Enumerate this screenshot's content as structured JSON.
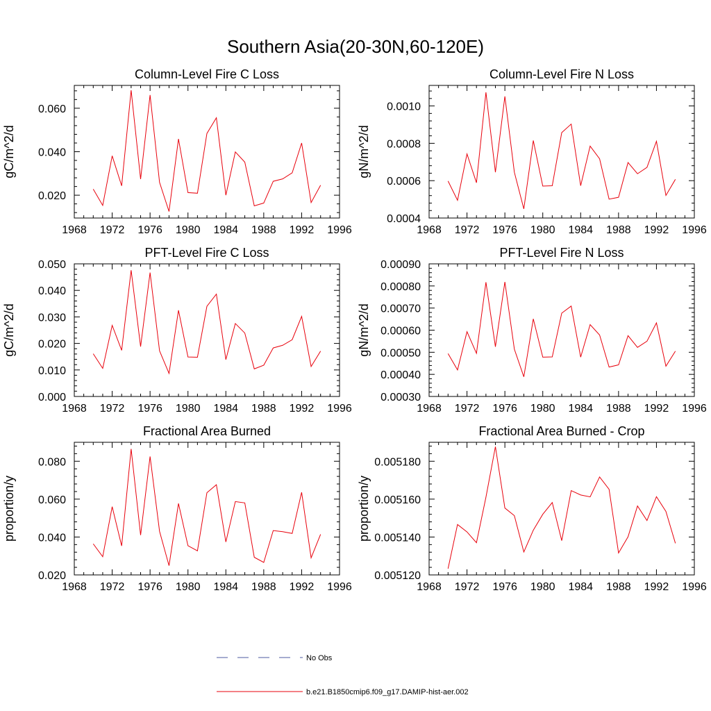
{
  "figure": {
    "title": "Southern Asia(20-30N,60-120E)",
    "legend": [
      {
        "label": "No Obs",
        "color": "#4b5aa0",
        "dash": "dashed"
      },
      {
        "label": "b.e21.B1850cmip6.f09_g17.DAMIP-hist-aer.002",
        "color": "#e8000b",
        "dash": "solid"
      }
    ]
  },
  "chart_data": [
    {
      "type": "line",
      "title": "Column-Level Fire C Loss",
      "xlabel": "",
      "ylabel": "gC/m^2/d",
      "xlim": [
        1968,
        1996
      ],
      "ylim": [
        0.0095,
        0.0705
      ],
      "xticks": [
        1968,
        1972,
        1976,
        1980,
        1984,
        1988,
        1992,
        1996
      ],
      "yticks": [
        0.02,
        0.04,
        0.06
      ],
      "ytick_labels": [
        "0.020",
        "0.040",
        "0.060"
      ],
      "x": [
        1970,
        1971,
        1972,
        1973,
        1974,
        1975,
        1976,
        1977,
        1978,
        1979,
        1980,
        1981,
        1982,
        1983,
        1984,
        1985,
        1986,
        1987,
        1988,
        1989,
        1990,
        1991,
        1992,
        1993,
        1994
      ],
      "series": [
        {
          "color": "#e8000b",
          "values": [
            0.0228,
            0.0153,
            0.0381,
            0.0243,
            0.0683,
            0.0274,
            0.0661,
            0.0259,
            0.0125,
            0.0459,
            0.0212,
            0.0209,
            0.0484,
            0.0556,
            0.02,
            0.0399,
            0.0352,
            0.0151,
            0.0164,
            0.0264,
            0.0275,
            0.0303,
            0.044,
            0.0166,
            0.0246
          ]
        }
      ]
    },
    {
      "type": "line",
      "title": "Column-Level Fire N Loss",
      "xlabel": "",
      "ylabel": "gN/m^2/d",
      "xlim": [
        1968,
        1996
      ],
      "ylim": [
        0.0004,
        0.00111
      ],
      "xticks": [
        1968,
        1972,
        1976,
        1980,
        1984,
        1988,
        1992,
        1996
      ],
      "yticks": [
        0.0004,
        0.0006,
        0.0008,
        0.001
      ],
      "ytick_labels": [
        "0.0004",
        "0.0006",
        "0.0008",
        "0.0010"
      ],
      "x": [
        1970,
        1971,
        1972,
        1973,
        1974,
        1975,
        1976,
        1977,
        1978,
        1979,
        1980,
        1981,
        1982,
        1983,
        1984,
        1985,
        1986,
        1987,
        1988,
        1989,
        1990,
        1991,
        1992,
        1993,
        1994
      ],
      "series": [
        {
          "color": "#e8000b",
          "values": [
            0.000598,
            0.000495,
            0.000743,
            0.000589,
            0.001073,
            0.000645,
            0.001051,
            0.000645,
            0.000449,
            0.000815,
            0.000571,
            0.000573,
            0.000857,
            0.000903,
            0.000573,
            0.000785,
            0.000717,
            0.000501,
            0.000511,
            0.000697,
            0.000637,
            0.000671,
            0.000811,
            0.000521,
            0.000607
          ]
        }
      ]
    },
    {
      "type": "line",
      "title": "PFT-Level Fire C Loss",
      "xlabel": "",
      "ylabel": "gC/m^2/d",
      "xlim": [
        1968,
        1996
      ],
      "ylim": [
        0.0,
        0.05
      ],
      "xticks": [
        1968,
        1972,
        1976,
        1980,
        1984,
        1988,
        1992,
        1996
      ],
      "yticks": [
        0.0,
        0.01,
        0.02,
        0.03,
        0.04,
        0.05
      ],
      "ytick_labels": [
        "0.000",
        "0.010",
        "0.020",
        "0.030",
        "0.040",
        "0.050"
      ],
      "x": [
        1970,
        1971,
        1972,
        1973,
        1974,
        1975,
        1976,
        1977,
        1978,
        1979,
        1980,
        1981,
        1982,
        1983,
        1984,
        1985,
        1986,
        1987,
        1988,
        1989,
        1990,
        1991,
        1992,
        1993,
        1994
      ],
      "series": [
        {
          "color": "#e8000b",
          "values": [
            0.0161,
            0.0106,
            0.0268,
            0.0174,
            0.0476,
            0.0188,
            0.0467,
            0.0172,
            0.0087,
            0.0325,
            0.0149,
            0.0148,
            0.034,
            0.0386,
            0.0139,
            0.0275,
            0.0239,
            0.0104,
            0.0118,
            0.0183,
            0.0193,
            0.0214,
            0.0302,
            0.0113,
            0.0171
          ]
        }
      ]
    },
    {
      "type": "line",
      "title": "PFT-Level Fire N Loss",
      "xlabel": "",
      "ylabel": "gN/m^2/d",
      "xlim": [
        1968,
        1996
      ],
      "ylim": [
        0.0003,
        0.0009
      ],
      "xticks": [
        1968,
        1972,
        1976,
        1980,
        1984,
        1988,
        1992,
        1996
      ],
      "yticks": [
        0.0003,
        0.0004,
        0.0005,
        0.0006,
        0.0007,
        0.0008,
        0.0009
      ],
      "ytick_labels": [
        "0.00030",
        "0.00040",
        "0.00050",
        "0.00060",
        "0.00070",
        "0.00080",
        "0.00090"
      ],
      "x": [
        1970,
        1971,
        1972,
        1973,
        1974,
        1975,
        1976,
        1977,
        1978,
        1979,
        1980,
        1981,
        1982,
        1983,
        1984,
        1985,
        1986,
        1987,
        1988,
        1989,
        1990,
        1991,
        1992,
        1993,
        1994
      ],
      "series": [
        {
          "color": "#e8000b",
          "values": [
            0.000494,
            0.00042,
            0.000593,
            0.000495,
            0.000817,
            0.000525,
            0.000818,
            0.000514,
            0.000389,
            0.000651,
            0.000478,
            0.000479,
            0.000677,
            0.000709,
            0.000478,
            0.000625,
            0.000578,
            0.000433,
            0.000443,
            0.000575,
            0.000522,
            0.00055,
            0.000633,
            0.000437,
            0.000505
          ]
        }
      ]
    },
    {
      "type": "line",
      "title": "Fractional Area Burned",
      "xlabel": "",
      "ylabel": "proportion/y",
      "xlim": [
        1968,
        1996
      ],
      "ylim": [
        0.02,
        0.09
      ],
      "xticks": [
        1968,
        1972,
        1976,
        1980,
        1984,
        1988,
        1992,
        1996
      ],
      "yticks": [
        0.02,
        0.04,
        0.06,
        0.08
      ],
      "ytick_labels": [
        "0.020",
        "0.040",
        "0.060",
        "0.080"
      ],
      "x": [
        1970,
        1971,
        1972,
        1973,
        1974,
        1975,
        1976,
        1977,
        1978,
        1979,
        1980,
        1981,
        1982,
        1983,
        1984,
        1985,
        1986,
        1987,
        1988,
        1989,
        1990,
        1991,
        1992,
        1993,
        1994
      ],
      "series": [
        {
          "color": "#e8000b",
          "values": [
            0.0364,
            0.0296,
            0.056,
            0.0353,
            0.0865,
            0.041,
            0.0825,
            0.043,
            0.0249,
            0.0577,
            0.0354,
            0.0327,
            0.0634,
            0.0676,
            0.0374,
            0.0587,
            0.058,
            0.0293,
            0.0266,
            0.0434,
            0.0428,
            0.0419,
            0.0636,
            0.029,
            0.0414
          ]
        }
      ]
    },
    {
      "type": "line",
      "title": "Fractional Area Burned - Crop",
      "xlabel": "",
      "ylabel": "proportion/y",
      "xlim": [
        1968,
        1996
      ],
      "ylim": [
        0.00512,
        0.00519
      ],
      "xticks": [
        1968,
        1972,
        1976,
        1980,
        1984,
        1988,
        1992,
        1996
      ],
      "yticks": [
        0.00512,
        0.00514,
        0.00516,
        0.00518
      ],
      "ytick_labels": [
        "0.005120",
        "0.005140",
        "0.005160",
        "0.005180"
      ],
      "x": [
        1970,
        1971,
        1972,
        1973,
        1974,
        1975,
        1976,
        1977,
        1978,
        1979,
        1980,
        1981,
        1982,
        1983,
        1984,
        1985,
        1986,
        1987,
        1988,
        1989,
        1990,
        1991,
        1992,
        1993,
        1994
      ],
      "series": [
        {
          "color": "#e8000b",
          "values": [
            0.0051233,
            0.0051466,
            0.0051427,
            0.005137,
            0.005161,
            0.0051877,
            0.0051553,
            0.0051513,
            0.0051321,
            0.0051436,
            0.005152,
            0.0051582,
            0.0051381,
            0.0051645,
            0.0051622,
            0.0051612,
            0.0051717,
            0.0051652,
            0.0051316,
            0.0051401,
            0.0051564,
            0.0051487,
            0.0051613,
            0.0051535,
            0.0051367
          ]
        }
      ]
    }
  ]
}
